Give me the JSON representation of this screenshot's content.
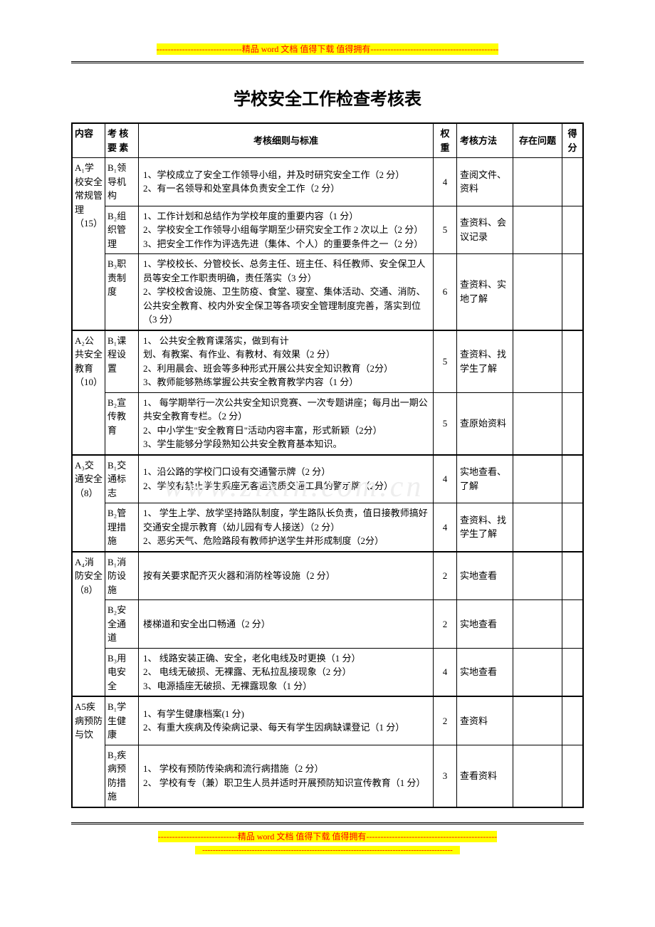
{
  "banner": {
    "dashes_left": "------------------------------",
    "text": "精品 word 文档  值得下载  值得拥有",
    "dashes_right": "---------------------------------------------"
  },
  "title": "学校安全工作检查考核表",
  "watermark": "www.zixin.com.cn",
  "headers": {
    "category": "内容",
    "element": "考 核要 素",
    "detail": "考核细则与标准",
    "weight": "权重",
    "method": "考核方法",
    "problem": "存在问题",
    "score": "得分"
  },
  "sections": [
    {
      "cat": "A₁学校安全常规管理（15）",
      "rows": [
        {
          "elem": "B₁领 导机 构",
          "detail": "1、学校成立了安全工作领导小组，并及时研究安全工作（2 分）\n2、有一名领导和处室具体负责安全工作（2 分）",
          "weight": "4",
          "method": "查阅文件、资料"
        },
        {
          "elem": "B₂组 织管 理",
          "detail": "1、工作计划和总结作为学校年度的重要内容（1 分）\n2、学校安全工作领导小组每学期至少研究安全工作 2 次以上（2 分）\n3、把安全工作作为评选先进（集体、个人）的重要条件之一（2 分）",
          "weight": "5",
          "method": "查资料、会议记录"
        },
        {
          "elem": "B₃职 责制 度",
          "detail": "1、学校校长、分管校长、总务主任、班主任、科任教师、安全保卫人员等安全工作职责明确，责任落实（3 分）\n2、学校校舍设施、卫生防疫、食堂、寝室、集体活动、交通、消防、公共安全教育、校内外安全保卫等各项安全管理制度完善，落实到位（3 分）",
          "weight": "6",
          "method": "查资料、实地了解"
        }
      ]
    },
    {
      "cat": "A₂公共安全教育（10）",
      "rows": [
        {
          "elem": "B₁课 程设 置",
          "detail": "1、 公共安全教育课落实，做到有计\n划、有教案、有作业、有教材、有效果（2 分）\n2、利用晨会、班会等多种形式开展公共安全知识教育（2分）\n3、教师能够熟练掌握公共安全教育教学内容（1 分）",
          "weight": "5",
          "method": "查资料、找学生了解"
        },
        {
          "elem": "B₂宣 传教 育",
          "detail": "1、 每学期举行一次公共安全知识竞赛、一次专题讲座；每月出一期公共安全教育专栏。（2 分）\n2、中小学生\"安全教育日\"活动内容丰富，形式新颖（2分）\n3、学生能够分学段熟知公共安全教育基本知识。",
          "weight": "5",
          "method": "查原始资料"
        }
      ]
    },
    {
      "cat": "A₃交通安全（8）",
      "rows": [
        {
          "elem": "B₁交 通标 志",
          "detail": "1、沿公路的学校门口设有交通警示牌（2 分）\n2、学校有禁止学生乘座无客运资质交通工具的警示牌（2分）",
          "weight": "4",
          "method": "实地查看、了解"
        },
        {
          "elem": "B₂管 理措 施",
          "detail": "1、 学生上学、放学坚持路队制度，学生路队长负责，值日接教师搞好交通安全提示教育（幼儿园有专人接送）（2 分）\n2、恶劣天气、危险路段有教师护送学生并形成制度（2分）",
          "weight": "4",
          "method": "查资料、找学生了解"
        }
      ]
    },
    {
      "cat": "A₄消防安全（8）",
      "rows": [
        {
          "elem": "B₁消 防设 施",
          "detail": "按有关要求配齐灭火器和消防栓等设施（2 分）",
          "weight": "2",
          "method": "实地查看"
        },
        {
          "elem": "B₂安 全通 道",
          "detail": "楼梯道和安全出口畅通（2 分）",
          "weight": "2",
          "method": "实地查看"
        },
        {
          "elem": "B₃用 电安 全",
          "detail": "1、 线路安装正确、安全，老化电线及时更换（1 分）\n2、 电线无破损、无裸露、无私拉乱接现象（2 分）\n3、电源插座无破损、无裸露现象（1 分）",
          "weight": "4",
          "method": "实地查看"
        }
      ]
    },
    {
      "cat": "A5疾病预防与饮",
      "rows": [
        {
          "elem": "B₁学 生健 康",
          "detail": "1、有学生健康档案(1 分)\n2、有重大疾病及传染病记录、每天有学生因病缺课登记（1 分）",
          "weight": "2",
          "method": "查资料"
        },
        {
          "elem": "B₂疾 病预 防措 施",
          "detail": "1、 学校有预防传染病和流行病措施（2 分）\n2、 学校有专（兼）职卫生人员并适时开展预防知识宣传教育（1 分）",
          "weight": "3",
          "method": "查看资料"
        }
      ]
    }
  ],
  "footer": {
    "line1_dashes_left": "----------------------------",
    "line1_text": "精品 word 文档  值得下载  值得拥有",
    "line1_dashes_right": "----------------------------------------------",
    "line2": "------------------------------------------------------------------------------------------------"
  }
}
